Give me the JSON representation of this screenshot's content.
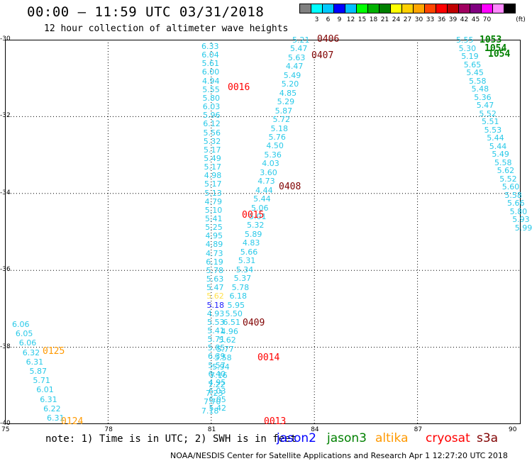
{
  "header": {
    "title": "00:00 – 11:59 UTC 03/31/2018",
    "subtitle": "12 hour collection of altimeter wave heights"
  },
  "legend": {
    "unit": "(ft)",
    "colors": [
      "#808080",
      "#00ffff",
      "#00c8ff",
      "#0000ff",
      "#00bfff",
      "#00ff00",
      "#00b000",
      "#008000",
      "#ffff00",
      "#ffd000",
      "#ffa500",
      "#ff4500",
      "#ff0000",
      "#c00000",
      "#a00060",
      "#800080",
      "#ff00ff",
      "#ff88ff",
      "#000000"
    ],
    "labels": [
      "3",
      "6",
      "9",
      "12",
      "15",
      "18",
      "21",
      "24",
      "27",
      "30",
      "33",
      "36",
      "39",
      "42",
      "45",
      "70"
    ]
  },
  "map": {
    "lat_labels": [
      "-30",
      "-32",
      "-34",
      "-36",
      "-38",
      "-40"
    ],
    "lon_labels": [
      "75",
      "78",
      "81",
      "84",
      "87",
      "90"
    ]
  },
  "colors": {
    "swh": "#29c9e8",
    "swh_yellow": "#ffe14d",
    "swh_blue": "#2020ff",
    "jason2": "#0000ff",
    "jason3": "#008000",
    "altika": "#ff9900",
    "cryosat": "#ff0000",
    "s3a": "#800000"
  },
  "tracks": [
    {
      "sat": "cryosat",
      "pass": "0016",
      "values": [
        "6.33",
        "6.04",
        "5.61",
        "6.00",
        "4.94",
        "5.55",
        "5.80",
        "6.03",
        "5.96",
        "6.12",
        "5.56",
        "5.32",
        "5.17",
        "5.49",
        "5.17",
        "4.98",
        "5.17",
        "5.13",
        "4.79",
        "5.10",
        "5.41",
        "5.25",
        "4.95",
        "4.89",
        "4.73",
        "6.19",
        "5.78",
        "5.63",
        "5.47",
        "5.62",
        "5.18",
        "4.93",
        "5.53",
        "5.41",
        "5.71",
        "5.85",
        "6.39",
        "5.57",
        "6.40",
        "4.95",
        "6.03",
        "6.05",
        "5.42"
      ]
    },
    {
      "sat": "s3a",
      "pass": "0406",
      "values": [
        "5.21",
        "5.47",
        "5.63",
        "4.47",
        "5.49",
        "5.20",
        "4.85",
        "5.29",
        "5.87",
        "5.72",
        "5.18",
        "5.76",
        "4.50",
        "5.36",
        "4.03",
        "3.60",
        "4.73",
        "4.44",
        "5.44",
        "5.06",
        "5.01",
        "5.32",
        "5.89",
        "4.83",
        "5.66",
        "5.31",
        "5.34",
        "5.37",
        "5.78",
        "6.18",
        "5.95",
        "5.50",
        "6.51",
        "4.96",
        "5.62",
        "5.77",
        "5.58",
        "5.94",
        "7.16",
        "7.22",
        "7.23",
        "7.70",
        "7.18"
      ]
    },
    {
      "sat": "altika",
      "pass": "0125",
      "values": [
        "6.06",
        "6.05",
        "6.06",
        "6.32",
        "6.31",
        "5.87",
        "5.71",
        "6.01",
        "6.31",
        "6.22",
        "6.31"
      ]
    },
    {
      "sat": "jason3",
      "pass": "1053",
      "values": [
        "5.55",
        "5.30",
        "5.19",
        "5.65",
        "5.45",
        "5.58",
        "5.48",
        "5.36",
        "5.47",
        "5.52",
        "5.51",
        "5.53",
        "5.44",
        "5.44",
        "5.49",
        "5.58",
        "5.62",
        "5.52",
        "5.60",
        "5.58",
        "5.66",
        "5.80",
        "5.93",
        "5.99"
      ]
    }
  ],
  "pass_labels": [
    {
      "text": "0406",
      "sat": "s3a"
    },
    {
      "text": "0407",
      "sat": "s3a"
    },
    {
      "text": "0016",
      "sat": "cryosat"
    },
    {
      "text": "0408",
      "sat": "s3a"
    },
    {
      "text": "0015",
      "sat": "cryosat"
    },
    {
      "text": "0409",
      "sat": "s3a"
    },
    {
      "text": "0014",
      "sat": "cryosat"
    },
    {
      "text": "0013",
      "sat": "cryosat"
    },
    {
      "text": "0125",
      "sat": "altika"
    },
    {
      "text": "0124",
      "sat": "altika"
    },
    {
      "text": "1053",
      "sat": "jason3"
    },
    {
      "text": "1054",
      "sat": "jason3"
    },
    {
      "text": "1054",
      "sat": "jason3"
    }
  ],
  "footer": {
    "note": "note: 1) Time is in UTC; 2) SWH is in feet",
    "satellites": [
      "jason2",
      "jason3",
      "altika",
      "cryosat",
      "s3a"
    ],
    "credit": "NOAA/NESDIS Center for Satellite Applications and Research    Apr  1 12:27:20 UTC 2018"
  }
}
